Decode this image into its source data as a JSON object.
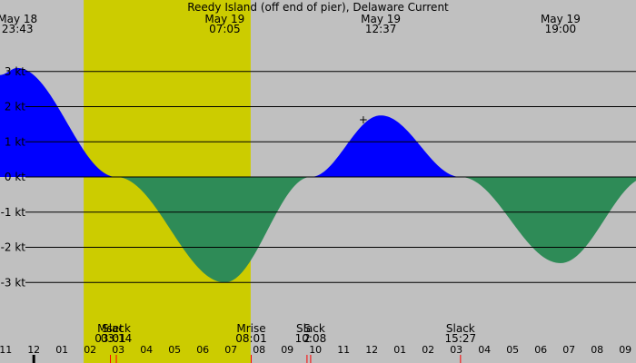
{
  "chart_data": {
    "type": "area",
    "title": "Reedy Island (off end of pier), Delaware Current",
    "x_unit": "hour of day",
    "y_unit": "kt",
    "xlim": [
      23.1,
      33.05
    ],
    "ylim": [
      -3.7,
      3.7
    ],
    "day_window": [
      26.07,
      32.0
    ],
    "y_ticks": [
      {
        "value": 3,
        "label": "3 kt"
      },
      {
        "value": 2,
        "label": "2 kt"
      },
      {
        "value": 1,
        "label": "1 kt"
      },
      {
        "value": 0,
        "label": "0 kt"
      },
      {
        "value": -1,
        "label": "-1 kt"
      },
      {
        "value": -2,
        "label": "-2 kt"
      },
      {
        "value": -3,
        "label": "-3 kt"
      }
    ],
    "top_labels": [
      {
        "date": "May 18",
        "time": "23:43",
        "x": 23.72
      },
      {
        "date": "May 19",
        "time": "07:05",
        "x": 31.08
      },
      {
        "date": "May 19",
        "time": "12:37",
        "x": 36.62
      },
      {
        "date": "May 19",
        "time": "19:00",
        "x": 43.0
      }
    ],
    "current_points": [
      {
        "t": 23.1,
        "v": 2.9
      },
      {
        "t": 23.72,
        "v": 3.1
      },
      {
        "t": 27.23,
        "v": 0.0
      },
      {
        "t": 31.08,
        "v": -3.0
      },
      {
        "t": 34.13,
        "v": 0.0
      },
      {
        "t": 36.62,
        "v": 1.75
      },
      {
        "t": 39.45,
        "v": 0.0
      },
      {
        "t": 43.0,
        "v": -2.45
      },
      {
        "t": 46.1,
        "v": 0.0
      }
    ],
    "series": [
      {
        "name": "flood",
        "color": "#0000ff"
      },
      {
        "name": "ebb",
        "color": "#2e8b57"
      }
    ],
    "events": [
      {
        "name": "Mset",
        "time": "03:01",
        "x": 3.02
      },
      {
        "name": "Slack",
        "time": "03:14",
        "x": 3.23
      },
      {
        "name": "Mrise",
        "time": "08:01",
        "x": 8.02
      },
      {
        "name": "Slack",
        "time": "10:08",
        "x": 10.13
      },
      {
        "name": "Slack",
        "time": "15:27",
        "x": 15.45
      },
      {
        "name": "S",
        "time": "2",
        "x": 34.0
      }
    ],
    "x_ticks": [
      "11",
      "12",
      "01",
      "02",
      "03",
      "04",
      "05",
      "06",
      "07",
      "08",
      "09",
      "10",
      "11",
      "12",
      "01",
      "02",
      "03",
      "04",
      "05",
      "06",
      "07",
      "08",
      "09"
    ],
    "marker": {
      "symbol": "+",
      "t": 36.0,
      "v": 1.62
    },
    "colors": {
      "night": "#c0c0c0",
      "day": "#cccc00",
      "grid": "#000000",
      "event_tick": "#ff0000",
      "now_tick": "#000000"
    }
  }
}
